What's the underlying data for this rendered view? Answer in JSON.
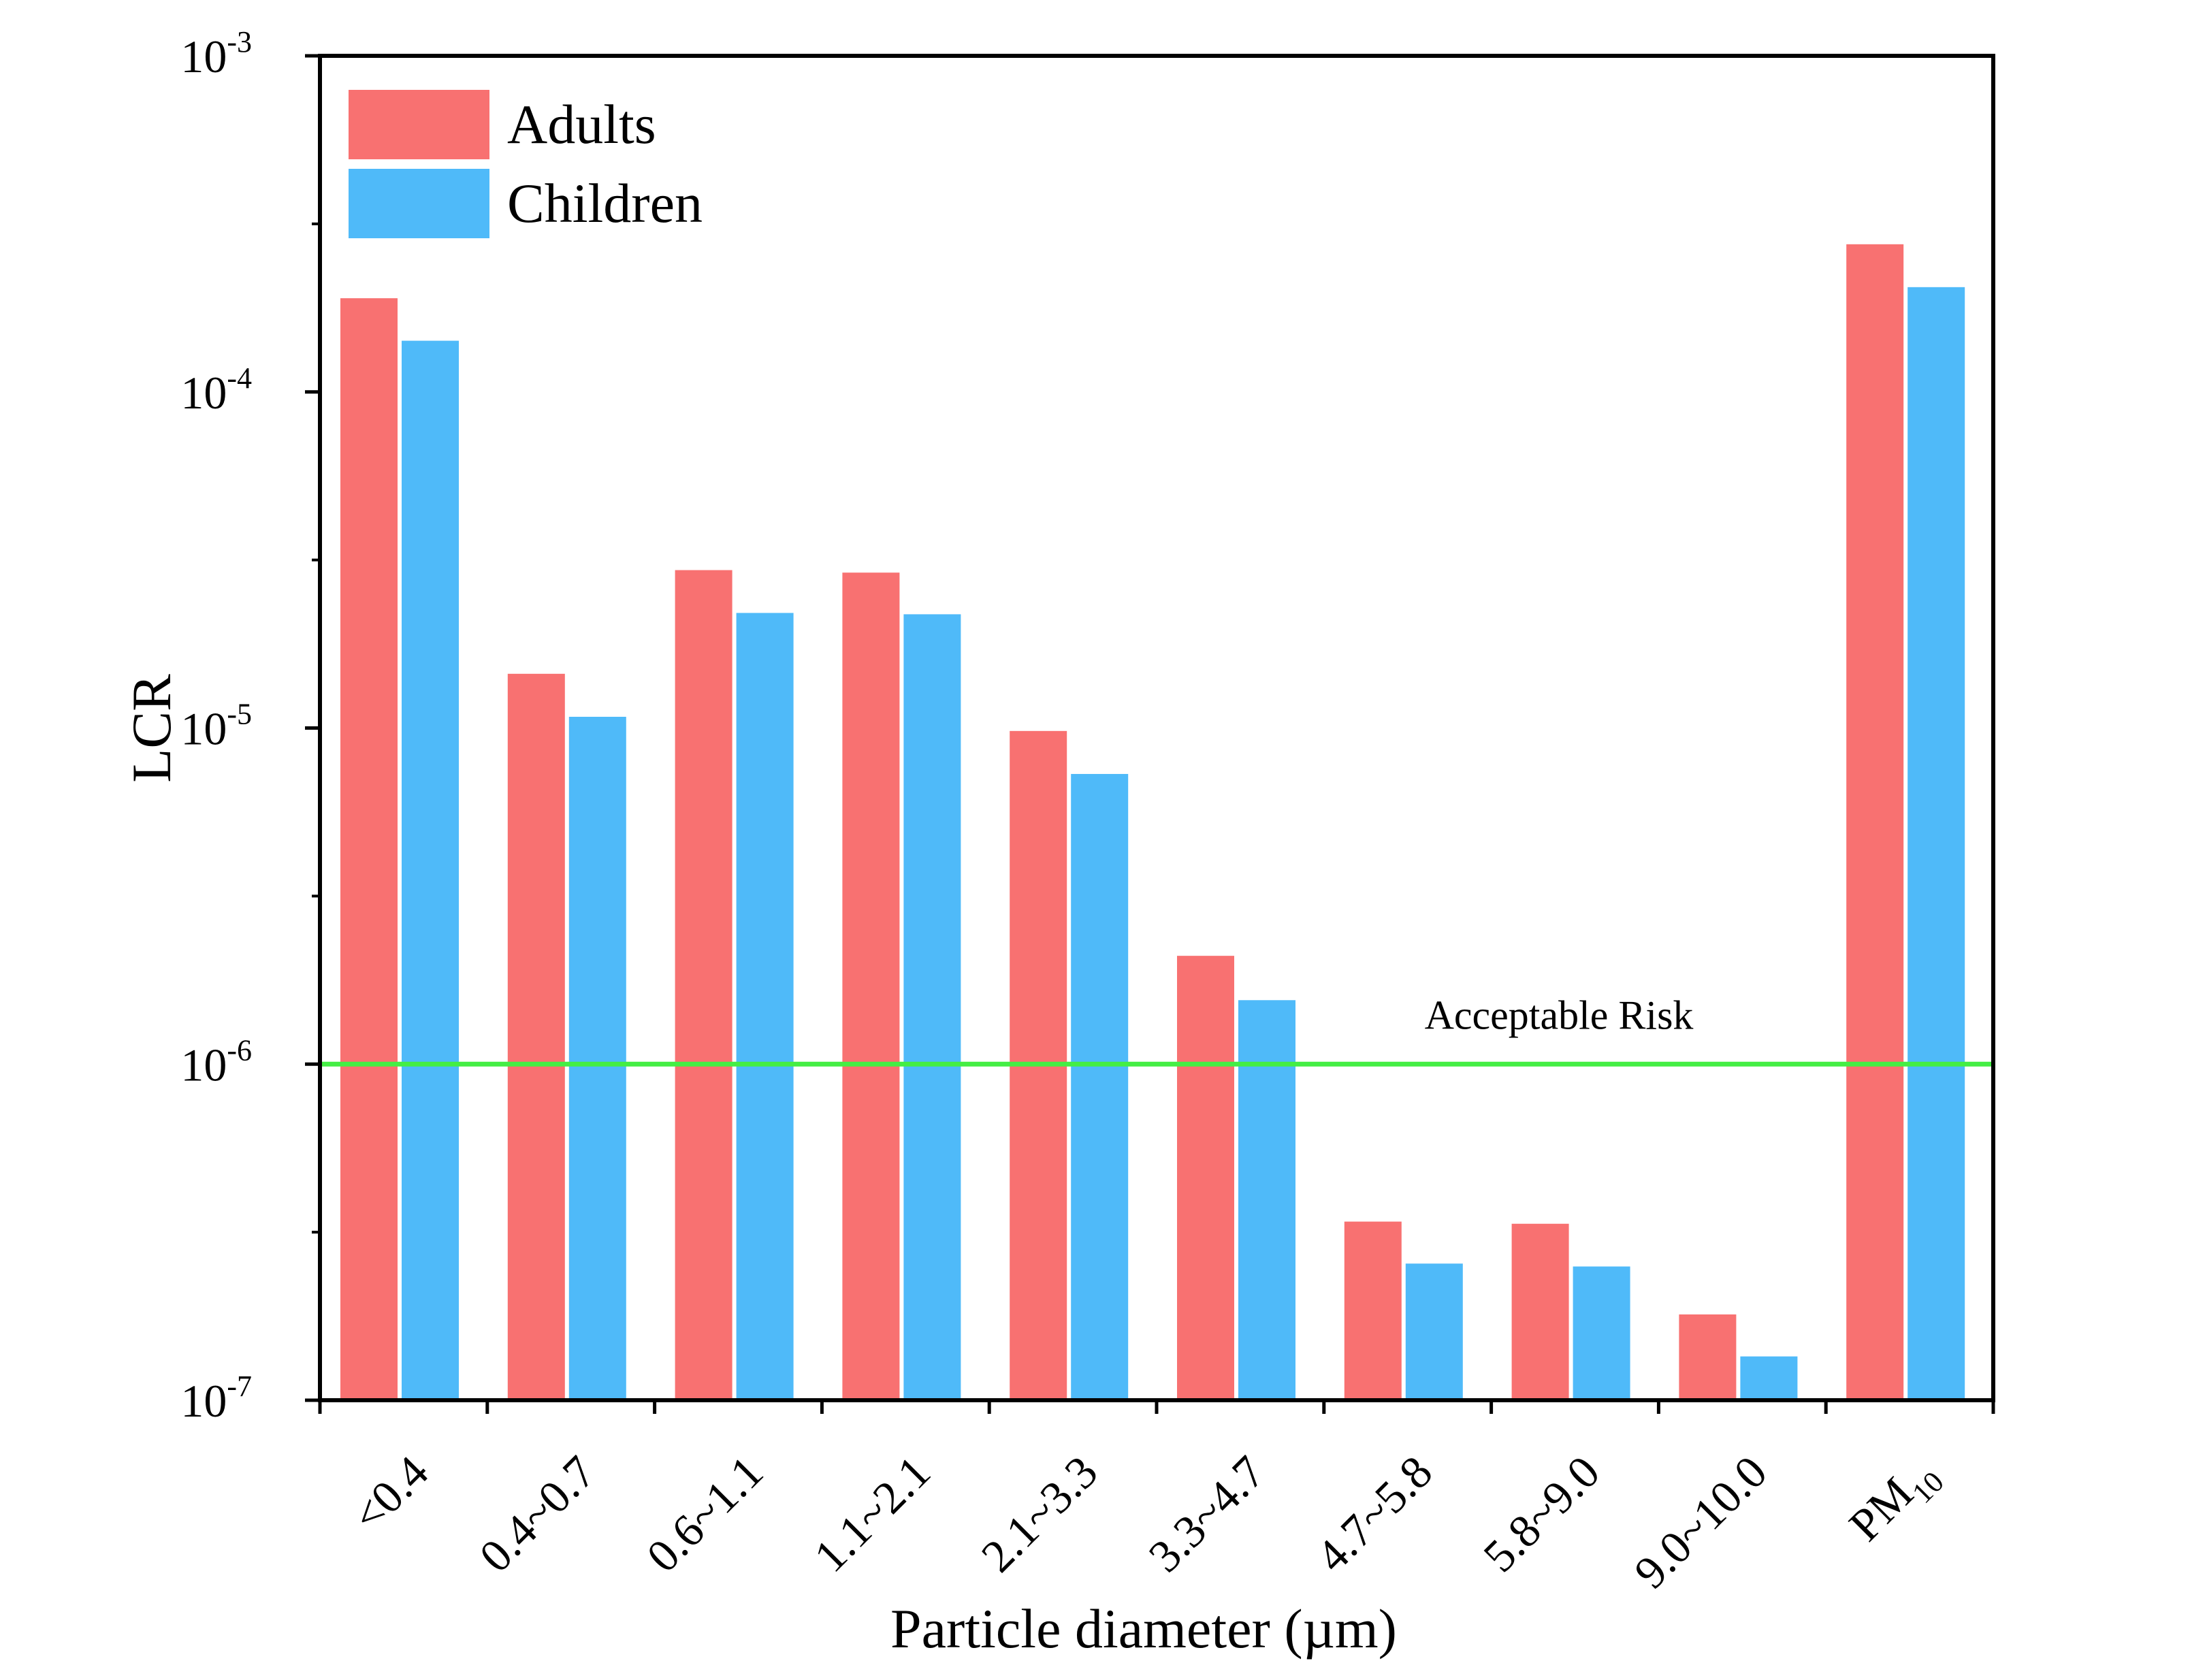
{
  "chart_data": {
    "type": "bar",
    "title": "",
    "xlabel": "Particle diameter (µm)",
    "ylabel": "LCR",
    "yscale": "log",
    "ylim": [
      1e-07,
      0.001
    ],
    "yticks": [
      {
        "value": 1e-07,
        "base": "10",
        "exp": "-7"
      },
      {
        "value": 1e-06,
        "base": "10",
        "exp": "-6"
      },
      {
        "value": 1e-05,
        "base": "10",
        "exp": "-5"
      },
      {
        "value": 0.0001,
        "base": "10",
        "exp": "-4"
      },
      {
        "value": 0.001,
        "base": "10",
        "exp": "-3"
      }
    ],
    "categories": [
      {
        "label": "<0.4",
        "sub": ""
      },
      {
        "label": "0.4~0.7",
        "sub": ""
      },
      {
        "label": "0.6~1.1",
        "sub": ""
      },
      {
        "label": "1.1~2.1",
        "sub": ""
      },
      {
        "label": "2.1~3.3",
        "sub": ""
      },
      {
        "label": "3.3~4.7",
        "sub": ""
      },
      {
        "label": "4.7~5.8",
        "sub": ""
      },
      {
        "label": "5.8~9.0",
        "sub": ""
      },
      {
        "label": "9.0~10.0",
        "sub": ""
      },
      {
        "label": "PM",
        "sub": "10"
      }
    ],
    "series": [
      {
        "name": "Adults",
        "color": "#f87171",
        "values": [
          0.00019,
          1.45e-05,
          2.95e-05,
          2.9e-05,
          9.8e-06,
          2.1e-06,
          3.4e-07,
          3.35e-07,
          1.8e-07,
          0.000275
        ]
      },
      {
        "name": "Children",
        "color": "#4fbaf9",
        "values": [
          0.000142,
          1.08e-05,
          2.2e-05,
          2.18e-05,
          7.3e-06,
          1.55e-06,
          2.55e-07,
          2.5e-07,
          1.35e-07,
          0.000205
        ]
      }
    ],
    "reference_line": {
      "value": 1e-06,
      "label": "Acceptable Risk",
      "color": "#44ee44"
    },
    "legend_position": "top-left",
    "grid": false
  }
}
